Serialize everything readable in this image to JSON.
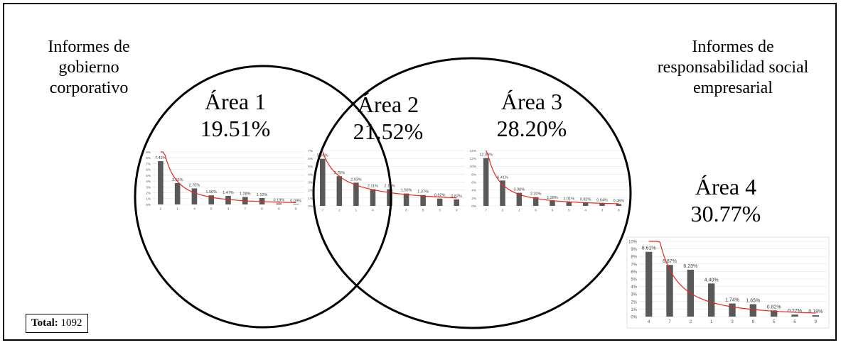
{
  "labels": {
    "left_title": "Informes de gobierno corporativo",
    "right_title": "Informes de responsabilidad social empresarial"
  },
  "areas": [
    {
      "name": "Área 1",
      "percent": "19.51%"
    },
    {
      "name": "Área 2",
      "percent": "21.52%"
    },
    {
      "name": "Área 3",
      "percent": "28.20%"
    },
    {
      "name": "Área 4",
      "percent": "30.77%"
    }
  ],
  "total": {
    "label": "Total:",
    "value": "1092"
  },
  "colors": {
    "bar": "#595959",
    "trendline": "#e8271f"
  },
  "chart_data": [
    {
      "type": "bar",
      "area": "Área 1",
      "categories": [
        "2",
        "1",
        "4",
        "5",
        "3",
        "7",
        "8",
        "6",
        "9"
      ],
      "values": [
        7.42,
        3.66,
        2.75,
        1.56,
        1.47,
        1.28,
        1.1,
        0.18,
        0.09
      ],
      "data_labels": [
        "7.42%",
        "3.66%",
        "2.75%",
        "1.56%",
        "1.47%",
        "1.28%",
        "1.10%",
        "0.18%",
        "0.09%"
      ],
      "yticks": [
        "0%",
        "1%",
        "2%",
        "3%",
        "4%",
        "5%",
        "6%",
        "7%",
        "8%",
        "9%"
      ],
      "ylim": [
        0,
        9
      ],
      "trendline": "power"
    },
    {
      "type": "bar",
      "area": "Área 2",
      "categories": [
        "7",
        "2",
        "1",
        "4",
        "6",
        "8",
        "5",
        "3",
        "9"
      ],
      "values": [
        5.95,
        3.75,
        2.93,
        2.11,
        2.11,
        1.56,
        1.37,
        0.92,
        0.82
      ],
      "data_labels": [
        "5.95%",
        "3.75%",
        "2.93%",
        "2.11%",
        "2.11%",
        "1.56%",
        "1.37%",
        "0.92%",
        "0.82%"
      ],
      "yticks": [
        "0%",
        "1%",
        "2%",
        "3%",
        "4%",
        "5%",
        "6%",
        "7%"
      ],
      "ylim": [
        0,
        7
      ],
      "trendline": "power"
    },
    {
      "type": "bar",
      "area": "Área 3",
      "categories": [
        "7",
        "2",
        "1",
        "6",
        "9",
        "5",
        "4",
        "3",
        "8"
      ],
      "values": [
        12.09,
        6.41,
        3.3,
        2.2,
        1.28,
        1.01,
        0.82,
        0.64,
        0.46
      ],
      "data_labels": [
        "12.09%",
        "6.41%",
        "3.30%",
        "2.20%",
        "1.28%",
        "1.01%",
        "0.82%",
        "0.64%",
        "0.46%"
      ],
      "yticks": [
        "0%",
        "2%",
        "4%",
        "6%",
        "8%",
        "10%",
        "12%",
        "14%"
      ],
      "ylim": [
        0,
        14
      ],
      "trendline": "power"
    },
    {
      "type": "bar",
      "area": "Área 4",
      "categories": [
        "4",
        "7",
        "2",
        "1",
        "3",
        "8",
        "5",
        "6",
        "9"
      ],
      "values": [
        8.61,
        6.87,
        6.23,
        4.4,
        1.74,
        1.65,
        0.82,
        0.27,
        0.18
      ],
      "data_labels": [
        "8.61%",
        "6.87%",
        "6.23%",
        "4.40%",
        "1.74%",
        "1.65%",
        "0.82%",
        "0.27%",
        "0.18%"
      ],
      "yticks": [
        "0%",
        "1%",
        "2%",
        "3%",
        "4%",
        "5%",
        "6%",
        "7%",
        "8%",
        "9%",
        "10%"
      ],
      "ylim": [
        0,
        10
      ],
      "trendline": "power"
    }
  ]
}
